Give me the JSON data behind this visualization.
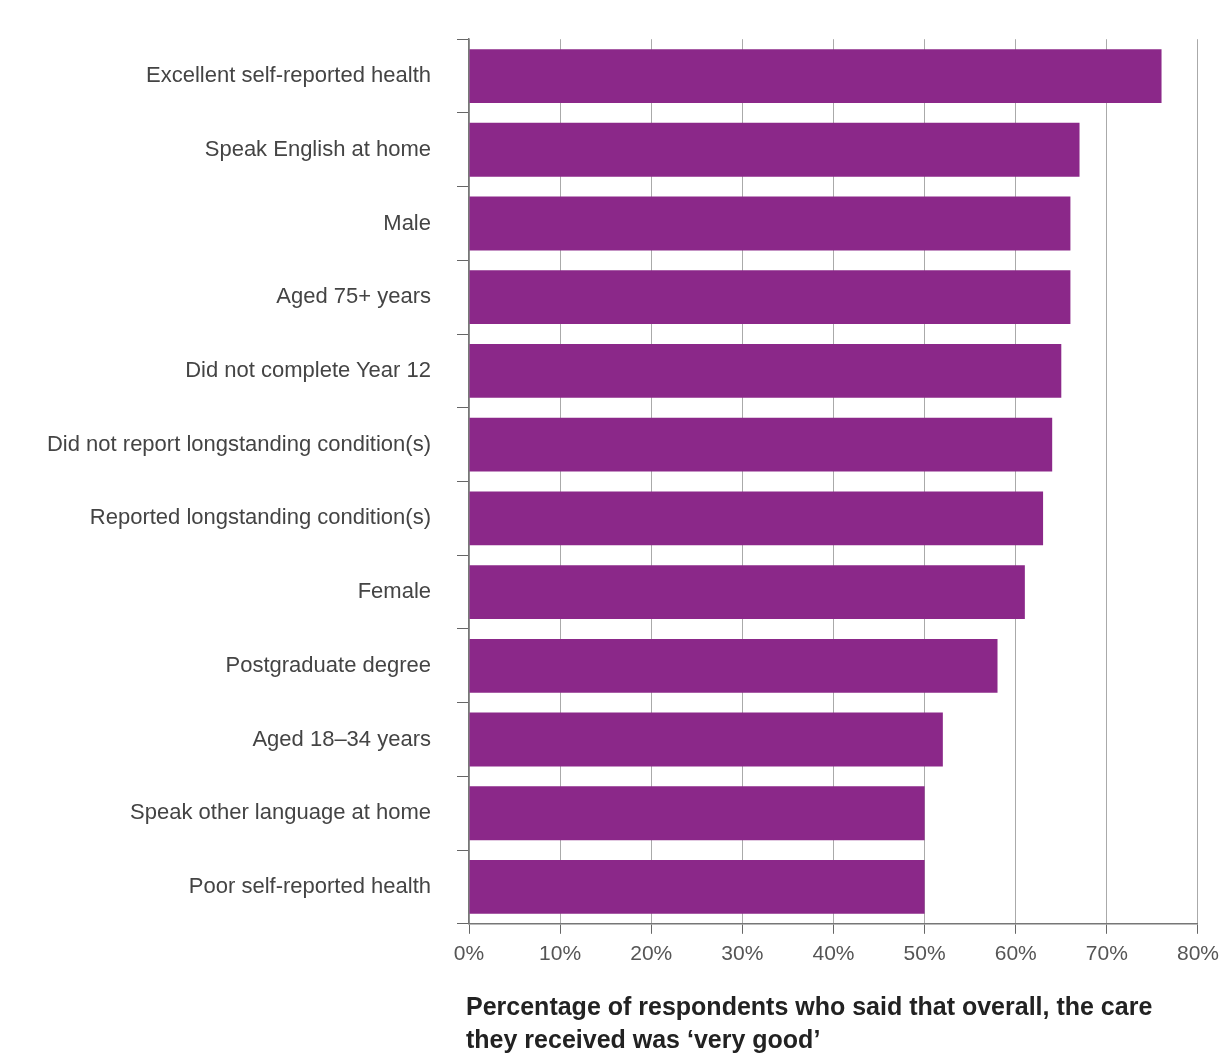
{
  "chart_data": {
    "type": "bar",
    "orientation": "horizontal",
    "xlabel": "Percentage of respondents who said that overall, the care they received was ‘very good’",
    "categories": [
      "Excellent self-reported health",
      "Speak English at home",
      "Male",
      "Aged 75+ years",
      "Did not complete Year 12",
      "Did not report longstanding condition(s)",
      "Reported longstanding condition(s)",
      "Female",
      "Postgraduate degree",
      "Aged 18–34 years",
      "Speak other language at home",
      "Poor self-reported health"
    ],
    "values": [
      76,
      67,
      66,
      66,
      65,
      64,
      63,
      61,
      58,
      52,
      50,
      50
    ],
    "color": "#8b2889",
    "xlim": [
      0,
      80
    ],
    "xticks": [
      {
        "value": 0,
        "label": "0%"
      },
      {
        "value": 10,
        "label": "10%"
      },
      {
        "value": 20,
        "label": "20%"
      },
      {
        "value": 30,
        "label": "30%"
      },
      {
        "value": 40,
        "label": "40%"
      },
      {
        "value": 50,
        "label": "50%"
      },
      {
        "value": 60,
        "label": "60%"
      },
      {
        "value": 70,
        "label": "70%"
      },
      {
        "value": 80,
        "label": "80%"
      }
    ],
    "grid": "x",
    "legend": false
  }
}
